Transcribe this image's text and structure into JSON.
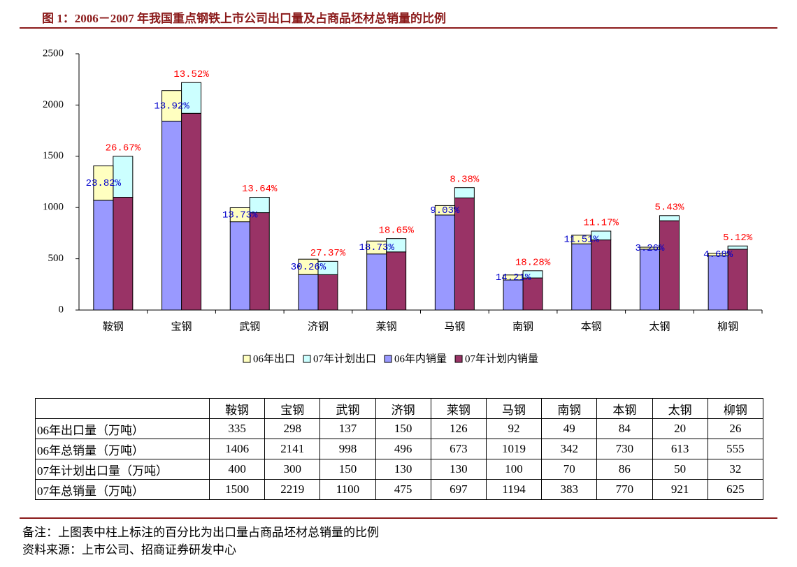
{
  "chart_data": {
    "type": "bar",
    "stacked": true,
    "title": "图 1：2006－2007 年我国重点钢铁上市公司出口量及占商品坯材总销量的比例",
    "categories": [
      "鞍钢",
      "宝钢",
      "武钢",
      "济钢",
      "莱钢",
      "马钢",
      "南钢",
      "本钢",
      "太钢",
      "柳钢"
    ],
    "series": [
      {
        "name": "06年出口",
        "color": "#ffffc0",
        "stack": 0,
        "values": [
          335,
          298,
          137,
          150,
          126,
          92,
          49,
          84,
          20,
          26
        ]
      },
      {
        "name": "07年计划出口",
        "color": "#ccffff",
        "stack": 1,
        "values": [
          400,
          300,
          150,
          130,
          130,
          100,
          70,
          86,
          50,
          32
        ]
      },
      {
        "name": "06年内销量",
        "color": "#9999ff",
        "stack": 0,
        "values": [
          1071,
          1843,
          861,
          346,
          547,
          927,
          293,
          646,
          593,
          529
        ]
      },
      {
        "name": "07年计划内销量",
        "color": "#993366",
        "stack": 1,
        "values": [
          1100,
          1919,
          950,
          345,
          567,
          1094,
          313,
          684,
          871,
          593
        ]
      }
    ],
    "labels_06": [
      "23.82%",
      "13.92%",
      "13.73%",
      "30.26%",
      "18.73%",
      "9.03%",
      "14.21%",
      "11.51%",
      "3.26%",
      "4.68%"
    ],
    "labels_07": [
      "26.67%",
      "13.52%",
      "13.64%",
      "27.37%",
      "18.65%",
      "8.38%",
      "18.28%",
      "11.17%",
      "5.43%",
      "5.12%"
    ],
    "labels_06_color": "#0000cc",
    "labels_07_color": "#ff0000",
    "ylim": [
      0,
      2500
    ],
    "yticks": [
      0,
      500,
      1000,
      1500,
      2000,
      2500
    ],
    "grid": false,
    "legend": "bottom"
  },
  "table": {
    "header": [
      "鞍钢",
      "宝钢",
      "武钢",
      "济钢",
      "莱钢",
      "马钢",
      "南钢",
      "本钢",
      "太钢",
      "柳钢"
    ],
    "rows": [
      [
        "06年出口量（万吨）",
        335,
        298,
        137,
        150,
        126,
        92,
        49,
        84,
        20,
        26
      ],
      [
        "06年总销量（万吨）",
        1406,
        2141,
        998,
        496,
        673,
        1019,
        342,
        730,
        613,
        555
      ],
      [
        "07年计划出口量（万吨）",
        400,
        300,
        150,
        130,
        130,
        100,
        70,
        86,
        50,
        32
      ],
      [
        "07年总销量（万吨）",
        1500,
        2219,
        1100,
        475,
        697,
        1194,
        383,
        770,
        921,
        625
      ]
    ]
  },
  "notes": [
    "备注：上图表中柱上标注的百分比为出口量占商品坯材总销量的比例",
    "资料来源：上市公司、招商证券研发中心"
  ]
}
